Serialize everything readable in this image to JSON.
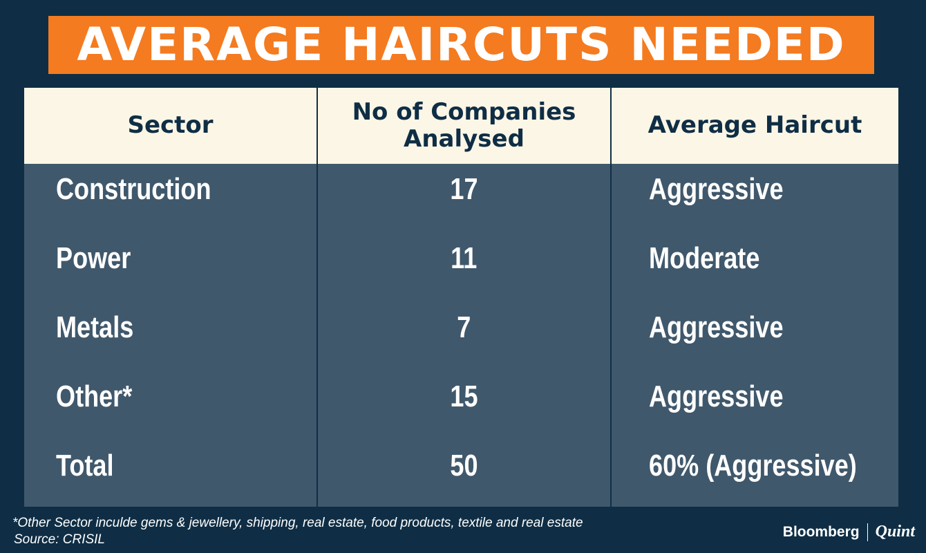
{
  "title": "AVERAGE HAIRCUTS NEEDED",
  "chart_data": {
    "type": "table",
    "title": "AVERAGE HAIRCUTS NEEDED",
    "columns": [
      "Sector",
      "No of Companies Analysed",
      "Average Haircut"
    ],
    "header_lines": {
      "sector": "Sector",
      "companies_line1": "No of Companies",
      "companies_line2": "Analysed",
      "haircut": "Average Haircut"
    },
    "rows": [
      {
        "sector": "Construction",
        "companies": "17",
        "haircut": "Aggressive"
      },
      {
        "sector": "Power",
        "companies": "11",
        "haircut": "Moderate"
      },
      {
        "sector": "Metals",
        "companies": "7",
        "haircut": "Aggressive"
      },
      {
        "sector": "Other*",
        "companies": "15",
        "haircut": "Aggressive"
      },
      {
        "sector": "Total",
        "companies": "50",
        "haircut": "60% (Aggressive)"
      }
    ]
  },
  "footnote": "*Other Sector inculde gems & jewellery, shipping, real estate, food products, textile and real estate",
  "source": "Source: CRISIL",
  "logo": {
    "left": "Bloomberg",
    "right": "Quint"
  },
  "colors": {
    "background": "#0f2e45",
    "title_box": "#f47b20",
    "header_row": "#fcf6e6",
    "body_rows": "#40586c"
  }
}
